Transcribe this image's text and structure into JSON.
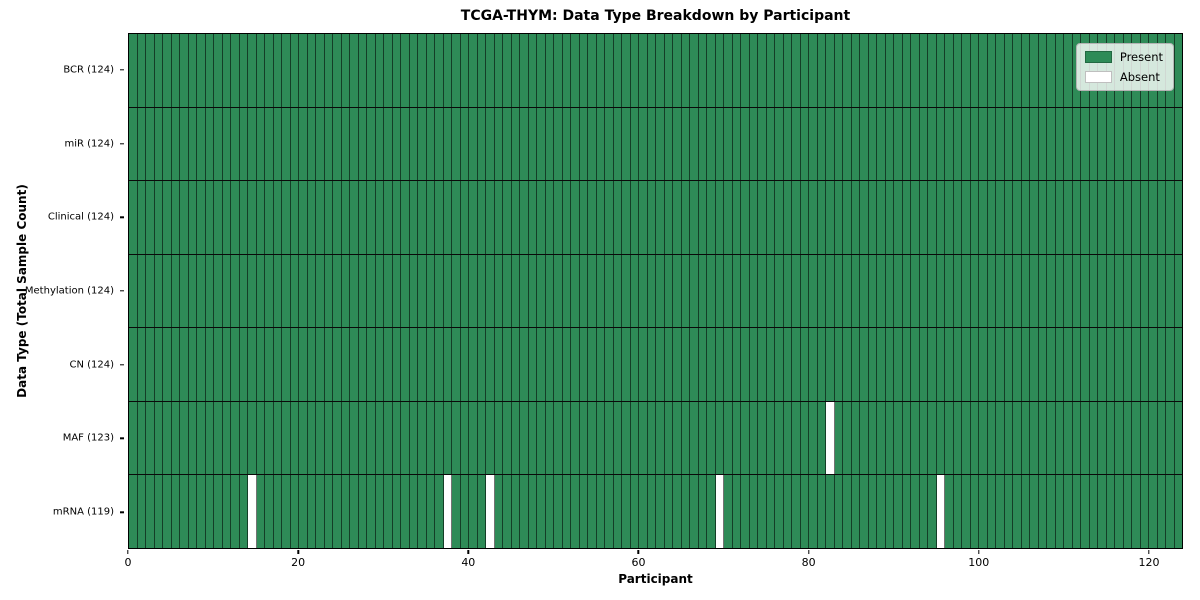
{
  "chart_data": {
    "type": "heatmap",
    "title": "TCGA-THYM: Data Type Breakdown by Participant",
    "xlabel": "Participant",
    "ylabel": "Data Type (Total Sample Count)",
    "n_participants": 124,
    "x_range": [
      0,
      124
    ],
    "x_ticks": [
      0,
      20,
      40,
      60,
      80,
      100,
      120
    ],
    "grid": "cell-edges",
    "legend_position": "upper right",
    "colors": {
      "present": "#2e8b57",
      "absent": "#ffffff",
      "cell_edge": "rgba(0,0,0,0.55)",
      "row_divider": "#0a0a0a"
    },
    "legend_items": [
      {
        "label": "Present",
        "color": "#2e8b57"
      },
      {
        "label": "Absent",
        "color": "#ffffff"
      }
    ],
    "rows": [
      {
        "label": "BCR (124)",
        "data_type": "BCR",
        "total_samples": 124,
        "absent_participants": []
      },
      {
        "label": "miR (124)",
        "data_type": "miR",
        "total_samples": 124,
        "absent_participants": []
      },
      {
        "label": "Clinical (124)",
        "data_type": "Clinical",
        "total_samples": 124,
        "absent_participants": []
      },
      {
        "label": "Methylation (124)",
        "data_type": "Methylation",
        "total_samples": 124,
        "absent_participants": []
      },
      {
        "label": "CN (124)",
        "data_type": "CN",
        "total_samples": 124,
        "absent_participants": []
      },
      {
        "label": "MAF (123)",
        "data_type": "MAF",
        "total_samples": 123,
        "absent_participants": [
          82
        ]
      },
      {
        "label": "mRNA (119)",
        "data_type": "mRNA",
        "total_samples": 119,
        "absent_participants": [
          14,
          37,
          42,
          69,
          95
        ]
      }
    ]
  }
}
